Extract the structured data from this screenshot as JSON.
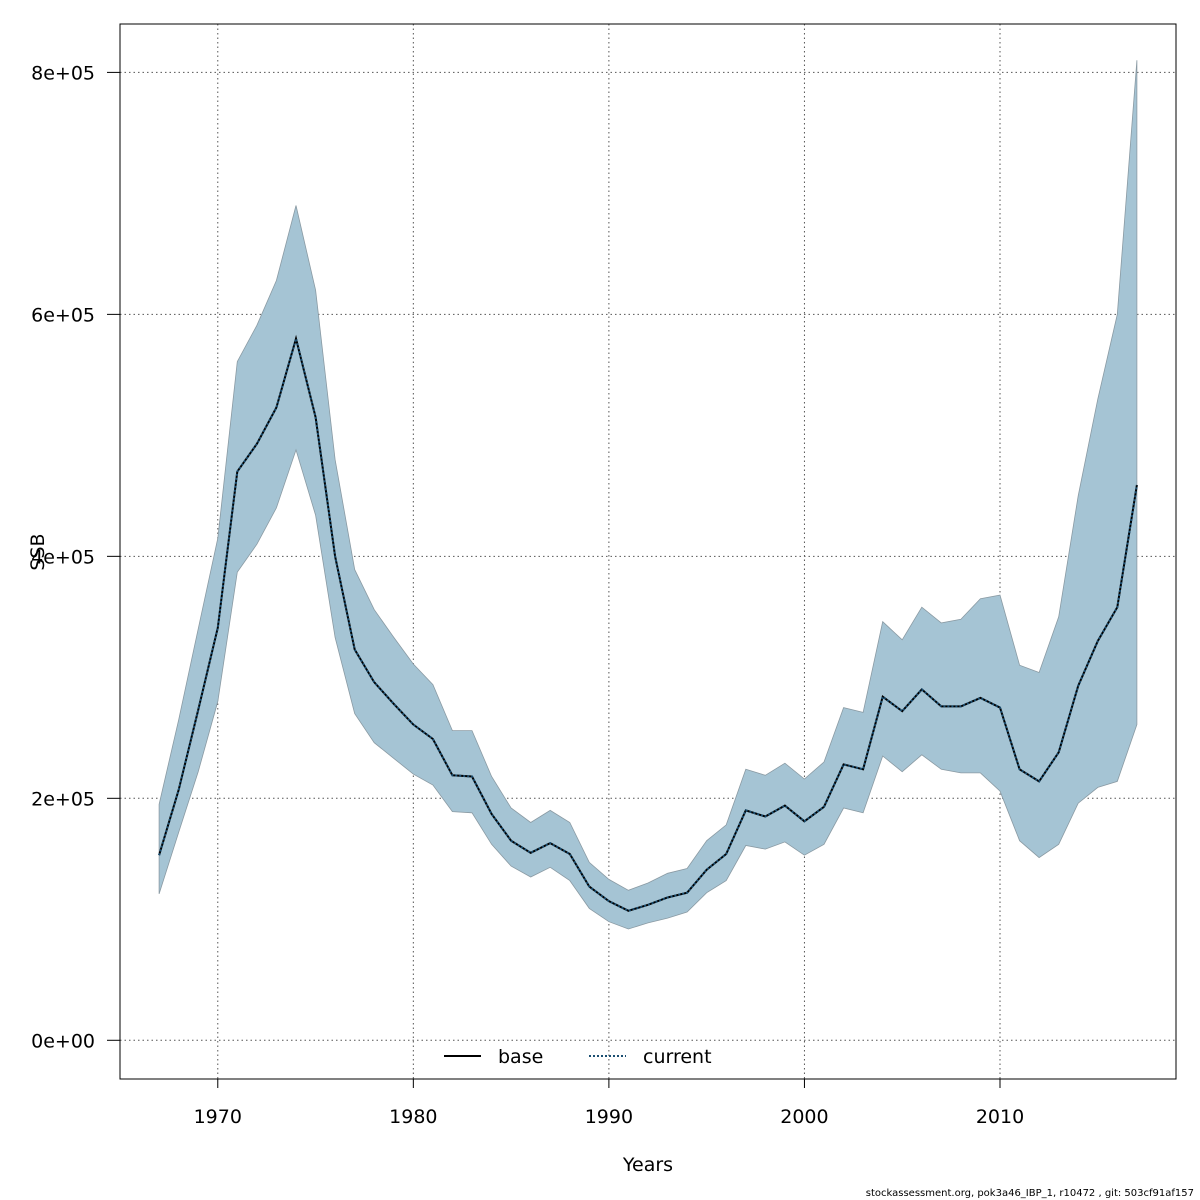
{
  "footer": "stockassessment.org, pok3a46_IBP_1, r10472 , git: 503cf91af157",
  "chart_data": {
    "type": "area",
    "xlabel": "Years",
    "ylabel": "SSB",
    "xlim": [
      1965,
      2019
    ],
    "ylim": [
      -32000,
      840000
    ],
    "x_ticks": [
      1970,
      1980,
      1990,
      2000,
      2010
    ],
    "y_ticks": [
      0,
      200000,
      400000,
      600000,
      800000
    ],
    "y_tick_labels": [
      "0e+00",
      "2e+05",
      "4e+05",
      "6e+05",
      "8e+05"
    ],
    "grid": true,
    "legend": {
      "placement": "bottom",
      "entries": [
        "base",
        "current"
      ]
    },
    "colors": {
      "band": "#a5c4d4",
      "band_edge": "#8a9aa3",
      "base": "#000000",
      "current": "#1b4f72",
      "grid": "#555555"
    },
    "x": [
      1967,
      1968,
      1969,
      1970,
      1971,
      1972,
      1973,
      1974,
      1975,
      1976,
      1977,
      1978,
      1979,
      1980,
      1981,
      1982,
      1983,
      1984,
      1985,
      1986,
      1987,
      1988,
      1989,
      1990,
      1991,
      1992,
      1993,
      1994,
      1995,
      1996,
      1997,
      1998,
      1999,
      2000,
      2001,
      2002,
      2003,
      2004,
      2005,
      2006,
      2007,
      2008,
      2009,
      2010,
      2011,
      2012,
      2013,
      2014,
      2015,
      2016,
      2017
    ],
    "series": [
      {
        "name": "base",
        "style": "solid",
        "values": [
          153000,
          207000,
          273000,
          341000,
          470000,
          493000,
          523000,
          580000,
          515000,
          400000,
          323000,
          296000,
          278000,
          261000,
          249000,
          219000,
          218000,
          187000,
          165000,
          155000,
          163000,
          154000,
          127000,
          115000,
          107000,
          112000,
          118000,
          122000,
          141000,
          154000,
          190000,
          185000,
          194000,
          181000,
          193000,
          228000,
          224000,
          284000,
          272000,
          290000,
          276000,
          276000,
          283000,
          275000,
          224000,
          214000,
          238000,
          293000,
          330000,
          358000,
          459000
        ]
      },
      {
        "name": "current",
        "style": "dotted",
        "values": [
          153000,
          207000,
          273000,
          341000,
          470000,
          493000,
          523000,
          580000,
          515000,
          400000,
          323000,
          296000,
          278000,
          261000,
          249000,
          219000,
          218000,
          187000,
          165000,
          155000,
          163000,
          154000,
          127000,
          115000,
          107000,
          112000,
          118000,
          122000,
          141000,
          154000,
          190000,
          185000,
          194000,
          181000,
          193000,
          228000,
          224000,
          284000,
          272000,
          290000,
          276000,
          276000,
          283000,
          275000,
          224000,
          214000,
          238000,
          293000,
          330000,
          358000,
          459000
        ]
      }
    ],
    "band_upper": [
      195000,
      265000,
      340000,
      415000,
      561000,
      591000,
      628000,
      690000,
      620000,
      480000,
      389000,
      356000,
      333000,
      311000,
      294000,
      256000,
      256000,
      218000,
      192000,
      180000,
      190000,
      180000,
      147000,
      133000,
      124000,
      130000,
      138000,
      142000,
      165000,
      178000,
      224000,
      219000,
      229000,
      216000,
      230000,
      275000,
      271000,
      346000,
      331000,
      358000,
      345000,
      348000,
      365000,
      368000,
      310000,
      304000,
      350000,
      450000,
      530000,
      600000,
      810000
    ],
    "band_lower": [
      121000,
      172000,
      222000,
      280000,
      387000,
      410000,
      440000,
      488000,
      434000,
      333000,
      270000,
      246000,
      233000,
      220000,
      211000,
      189000,
      188000,
      162000,
      144000,
      135000,
      143000,
      132000,
      109000,
      98000,
      92000,
      97000,
      101000,
      106000,
      122000,
      132000,
      161000,
      158000,
      164000,
      153000,
      162000,
      192000,
      188000,
      235000,
      222000,
      236000,
      224000,
      221000,
      221000,
      206000,
      165000,
      151000,
      162000,
      196000,
      209000,
      214000,
      261000
    ]
  }
}
